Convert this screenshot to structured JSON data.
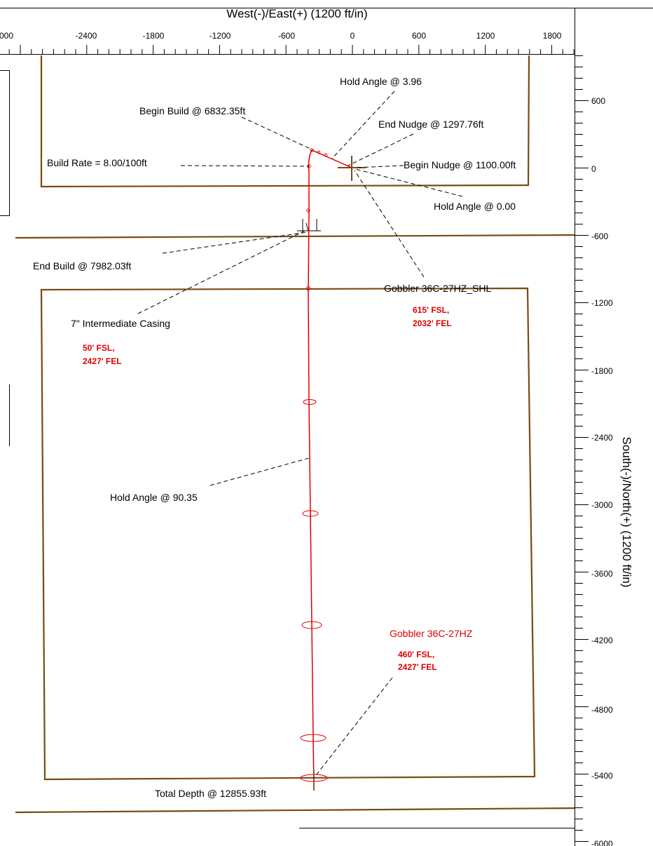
{
  "plot": {
    "x_axis_title": "West(-)/East(+) (1200 ft/in)",
    "y_axis_title": "South(-)/North(+) (1200 ft/in)",
    "x_tick_labels": [
      "000",
      "-2400",
      "-1800",
      "-1200",
      "-600",
      "0",
      "600",
      "1200",
      "1800"
    ],
    "y_tick_labels": [
      "600",
      "0",
      "-600",
      "-1200",
      "-1800",
      "-2400",
      "-3000",
      "-3600",
      "-4200",
      "-4800",
      "-5400",
      "-6000"
    ]
  },
  "annotations": {
    "hold_angle_1": "Hold Angle @ 3.96",
    "begin_build": "Begin Build @ 6832.35ft",
    "end_nudge": "End Nudge @ 1297.76ft",
    "build_rate": "Build Rate = 8.00/100ft",
    "begin_nudge": "Begin Nudge @ 1100.00ft",
    "hold_angle_2": "Hold Angle @ 0.00",
    "end_build": "End Build @ 7982.03ft",
    "shl_target": "Gobbler 36C-27HZ_SHL",
    "intermediate_casing": "7\" Intermediate Casing",
    "hold_angle_3": "Hold Angle @ 90.35",
    "total_depth": "Total Depth @ 12855.93ft"
  },
  "well_labels": {
    "shl_loc_1": "615' FSL,",
    "shl_loc_2": "2032' FEL",
    "lease_loc_1": "50' FSL,",
    "lease_loc_2": "2427' FEL",
    "bhl_name": "Gobbler 36C-27HZ",
    "bhl_loc_1": "460' FSL,",
    "bhl_loc_2": "2427' FEL"
  },
  "colors": {
    "lease_line": "#7a4a14",
    "wellpath": "#e00000",
    "text": "#000000"
  }
}
